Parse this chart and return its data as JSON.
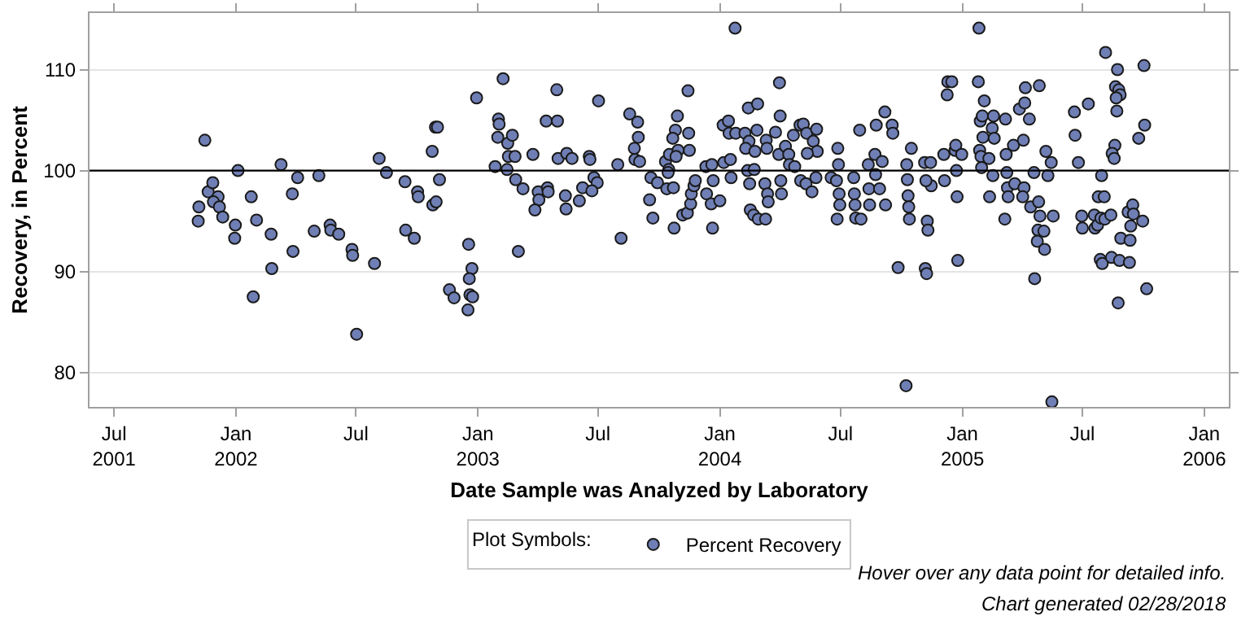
{
  "chart_data": {
    "type": "scatter",
    "xlabel": "Date Sample was Analyzed by Laboratory",
    "ylabel": "Recovery, in Percent",
    "legend_title": "Plot Symbols:",
    "legend": "bottom",
    "marker": "circle",
    "grid": "y",
    "xlim": [
      "2001-05-25",
      "2006-02-07"
    ],
    "xticks": [
      {
        "value": "2001-07-01",
        "label": "Jul\n2001"
      },
      {
        "value": "2002-01-01",
        "label": "Jan\n2002"
      },
      {
        "value": "2002-07-01",
        "label": "Jul"
      },
      {
        "value": "2003-01-01",
        "label": "Jan\n2003"
      },
      {
        "value": "2003-07-01",
        "label": "Jul"
      },
      {
        "value": "2004-01-01",
        "label": "Jan\n2004"
      },
      {
        "value": "2004-07-01",
        "label": "Jul"
      },
      {
        "value": "2005-01-01",
        "label": "Jan\n2005"
      },
      {
        "value": "2005-07-01",
        "label": "Jul"
      },
      {
        "value": "2006-01-01",
        "label": "Jan\n2006"
      }
    ],
    "ylim": [
      76.6,
      115.6
    ],
    "yticks": [
      80,
      90,
      100,
      110
    ],
    "ref_lines": [
      {
        "axis": "y",
        "value": 100,
        "label": null,
        "color": "#000000",
        "line_style": "solid"
      }
    ],
    "annotations": [
      "Hover over any data point for detailed info.",
      "Chart generated 02/28/2018"
    ],
    "x": [
      "2001-11-15",
      "2001-11-06",
      "2001-11-05",
      "2001-11-20",
      "2001-11-27",
      "2001-12-05",
      "2001-11-28",
      "2001-12-07",
      "2001-12-12",
      "2002-01-04",
      "2001-12-31",
      "2001-12-30",
      "2002-01-24",
      "2002-02-01",
      "2002-01-27",
      "2002-02-23",
      "2002-02-24",
      "2002-03-10",
      "2002-03-27",
      "2002-04-04",
      "2002-03-28",
      "2002-04-29",
      "2002-05-06",
      "2002-05-23",
      "2002-05-24",
      "2002-06-05",
      "2002-06-25",
      "2002-06-26",
      "2002-07-02",
      "2002-07-29",
      "2002-08-05",
      "2002-08-16",
      "2002-09-13",
      "2002-10-02",
      "2002-10-03",
      "2002-09-14",
      "2002-09-27",
      "2002-10-24",
      "2002-10-29",
      "2002-11-01",
      "2002-11-04",
      "2002-10-25",
      "2002-10-30",
      "2002-11-19",
      "2002-11-26",
      "2002-12-18",
      "2002-12-23",
      "2002-12-19",
      "2002-12-20",
      "2002-12-24",
      "2002-12-17",
      "2002-12-30",
      "2003-02-08",
      "2003-02-01",
      "2003-02-02",
      "2003-01-31",
      "2003-02-15",
      "2003-02-22",
      "2003-02-16",
      "2003-02-26",
      "2003-01-27",
      "2003-02-14",
      "2003-02-27",
      "2003-03-10",
      "2003-03-03",
      "2003-03-25",
      "2003-04-02",
      "2003-04-03",
      "2003-03-28",
      "2003-04-16",
      "2003-04-17",
      "2003-04-14",
      "2003-05-01",
      "2003-04-30",
      "2003-05-02",
      "2003-05-15",
      "2003-05-23",
      "2003-05-13",
      "2003-05-14",
      "2003-06-03",
      "2003-06-08",
      "2003-06-18",
      "2003-06-19",
      "2003-07-02",
      "2003-06-25",
      "2003-06-30",
      "2003-06-22",
      "2003-07-31",
      "2003-08-05",
      "2003-08-18",
      "2003-08-30",
      "2003-08-31",
      "2003-08-25",
      "2003-08-26",
      "2003-09-02",
      "2003-09-19",
      "2003-09-29",
      "2003-09-17",
      "2003-09-22",
      "2003-10-11",
      "2003-10-16",
      "2003-10-13",
      "2003-10-17",
      "2004-01-24",
      "2003-11-14",
      "2003-10-29",
      "2003-10-26",
      "2003-10-22",
      "2003-11-15",
      "2003-11-16",
      "2003-10-30",
      "2003-10-27",
      "2003-10-15",
      "2003-10-23",
      "2003-10-24",
      "2003-11-06",
      "2003-11-13",
      "2003-11-18",
      "2003-11-19",
      "2003-11-23",
      "2003-11-25",
      "2003-12-11",
      "2003-12-12",
      "2003-12-19",
      "2004-01-01",
      "2003-12-21",
      "2003-12-22",
      "2003-12-20",
      "2004-01-07",
      "2004-01-06",
      "2004-01-14",
      "2004-01-15",
      "2004-01-17",
      "2004-01-18",
      "2004-01-25",
      "2004-02-13",
      "2004-02-27",
      "2004-02-08",
      "2004-02-14",
      "2004-02-09",
      "2004-02-23",
      "2004-02-12",
      "2004-02-22",
      "2004-02-15",
      "2004-02-16",
      "2004-02-21",
      "2004-02-28",
      "2004-03-10",
      "2004-02-26",
      "2004-03-11",
      "2004-03-12",
      "2004-03-09",
      "2004-03-13",
      "2004-03-14",
      "2004-03-31",
      "2004-04-01",
      "2004-03-25",
      "2004-03-30",
      "2004-04-02",
      "2004-04-03",
      "2004-04-09",
      "2004-04-14",
      "2004-04-15",
      "2004-04-23",
      "2004-04-21",
      "2004-05-01",
      "2004-05-06",
      "2004-05-11",
      "2004-05-21",
      "2004-05-26",
      "2004-05-27",
      "2004-05-12",
      "2004-05-02",
      "2004-05-10",
      "2004-05-19",
      "2004-05-25",
      "2004-06-17",
      "2004-06-27",
      "2004-06-28",
      "2004-06-25",
      "2004-06-29",
      "2004-06-30",
      "2004-06-26",
      "2004-07-21",
      "2004-07-22",
      "2004-07-23",
      "2004-07-24",
      "2004-08-01",
      "2004-07-30",
      "2004-08-12",
      "2004-08-13",
      "2004-08-14",
      "2004-08-22",
      "2004-08-24",
      "2004-08-23",
      "2004-09-02",
      "2004-09-06",
      "2004-08-29",
      "2004-09-07",
      "2004-09-17",
      "2004-09-18",
      "2004-09-26",
      "2004-10-09",
      "2004-10-10",
      "2004-10-11",
      "2004-10-12",
      "2004-10-13",
      "2004-10-16",
      "2004-10-08",
      "2004-11-06",
      "2004-11-08",
      "2004-11-09",
      "2004-11-10",
      "2004-11-05",
      "2004-11-14",
      "2004-11-15",
      "2004-11-07",
      "2004-12-04",
      "2004-12-05",
      "2004-12-09",
      "2004-12-10",
      "2004-12-16",
      "2004-12-21",
      "2004-12-24",
      "2004-12-25",
      "2005-01-26",
      "2004-12-22",
      "2004-12-31",
      "2004-12-23",
      "2005-01-25",
      "2005-02-03",
      "2005-01-28",
      "2005-01-31",
      "2005-02-17",
      "2005-02-15",
      "2005-02-18",
      "2005-02-01",
      "2005-01-27",
      "2005-01-29",
      "2005-02-10",
      "2005-01-30",
      "2005-02-16",
      "2005-02-11",
      "2005-03-07",
      "2005-03-08",
      "2005-03-09",
      "2005-03-10",
      "2005-03-11",
      "2005-03-06",
      "2005-03-19",
      "2005-03-21",
      "2005-04-04",
      "2005-04-02",
      "2005-03-28",
      "2005-04-05",
      "2005-04-06",
      "2005-04-27",
      "2005-04-12",
      "2005-04-03",
      "2005-04-19",
      "2005-04-14",
      "2005-04-26",
      "2005-04-28",
      "2005-04-25",
      "2005-05-04",
      "2005-04-24",
      "2005-05-05",
      "2005-04-20",
      "2005-05-18",
      "2005-05-07",
      "2005-05-15",
      "2005-05-10",
      "2005-05-16",
      "2005-06-19",
      "2005-06-20",
      "2005-06-25",
      "2005-07-10",
      "2005-06-30",
      "2005-07-01",
      "2005-07-19",
      "2005-07-20",
      "2005-07-24",
      "2005-07-29",
      "2005-08-04",
      "2005-08-13",
      "2005-07-25",
      "2005-08-03",
      "2005-07-30",
      "2005-07-28",
      "2005-07-31",
      "2005-08-14",
      "2005-08-26",
      "2005-09-10",
      "2005-08-24",
      "2005-08-05",
      "2005-08-23",
      "2005-08-20",
      "2005-08-25",
      "2005-08-27",
      "2005-08-21",
      "2005-08-22",
      "2005-08-19",
      "2005-08-15",
      "2005-08-18",
      "2005-08-28",
      "2005-09-11",
      "2005-09-12",
      "2005-09-08",
      "2005-09-15",
      "2005-09-16",
      "2005-09-30",
      "2005-10-02",
      "2005-10-03",
      "2005-09-24",
      "2005-10-06"
    ],
    "series": [
      {
        "name": "Percent Recovery",
        "color": "#6f7fb5",
        "values": [
          103.0,
          96.4,
          95.0,
          97.9,
          98.8,
          97.4,
          96.9,
          96.4,
          95.4,
          100.0,
          94.6,
          93.3,
          97.4,
          95.1,
          87.5,
          93.7,
          90.3,
          100.6,
          97.7,
          99.3,
          92.0,
          94.0,
          99.5,
          94.6,
          94.1,
          93.7,
          92.2,
          91.6,
          83.8,
          90.8,
          101.2,
          99.8,
          98.9,
          97.9,
          97.4,
          94.1,
          93.3,
          101.9,
          104.3,
          104.3,
          99.1,
          96.6,
          96.9,
          88.2,
          87.4,
          92.7,
          90.3,
          89.3,
          87.7,
          87.5,
          86.2,
          107.2,
          109.1,
          105.1,
          104.6,
          103.3,
          102.7,
          103.5,
          101.4,
          101.4,
          100.4,
          100.1,
          99.1,
          98.2,
          92.0,
          101.6,
          97.9,
          97.1,
          96.1,
          98.3,
          97.9,
          104.9,
          104.9,
          108.0,
          101.2,
          101.7,
          101.2,
          97.5,
          96.2,
          97.0,
          98.3,
          101.4,
          101.1,
          106.9,
          99.3,
          98.8,
          98.0,
          100.6,
          93.3,
          105.6,
          104.8,
          103.3,
          102.2,
          101.1,
          100.9,
          99.3,
          98.8,
          97.1,
          95.3,
          100.9,
          100.1,
          98.2,
          101.6,
          114.1,
          107.9,
          105.4,
          104.0,
          103.2,
          103.7,
          102.0,
          102.0,
          101.4,
          99.8,
          98.3,
          94.3,
          95.6,
          95.8,
          96.7,
          97.7,
          98.5,
          99.0,
          100.4,
          97.7,
          96.7,
          97.0,
          94.3,
          99.0,
          100.6,
          100.8,
          104.5,
          104.9,
          103.7,
          101.1,
          99.3,
          103.7,
          106.2,
          106.6,
          103.7,
          102.9,
          102.2,
          101.9,
          100.0,
          100.1,
          98.7,
          96.1,
          95.6,
          95.2,
          95.2,
          104.0,
          103.0,
          102.2,
          98.7,
          97.7,
          96.9,
          108.7,
          105.4,
          103.8,
          101.6,
          99.0,
          97.7,
          102.4,
          101.6,
          100.6,
          100.4,
          103.5,
          104.5,
          104.6,
          103.7,
          102.9,
          104.1,
          101.9,
          101.7,
          99.0,
          98.7,
          97.9,
          99.3,
          99.3,
          102.2,
          100.6,
          99.0,
          97.7,
          96.6,
          95.2,
          99.3,
          97.7,
          96.6,
          95.3,
          95.2,
          104.0,
          100.6,
          98.2,
          96.6,
          101.6,
          104.5,
          99.6,
          100.9,
          105.8,
          98.2,
          96.6,
          104.5,
          103.7,
          90.4,
          100.6,
          99.1,
          97.5,
          96.4,
          95.2,
          102.2,
          78.7,
          90.3,
          89.8,
          95.0,
          94.1,
          100.8,
          100.8,
          98.5,
          99.0,
          101.6,
          99.0,
          107.5,
          108.8,
          108.8,
          102.0,
          97.4,
          91.1,
          114.1,
          102.5,
          101.6,
          100.0,
          108.8,
          106.9,
          104.9,
          105.4,
          105.4,
          104.2,
          103.2,
          103.3,
          102.0,
          101.4,
          101.2,
          100.3,
          99.5,
          97.4,
          105.1,
          101.6,
          99.8,
          98.3,
          97.4,
          95.2,
          102.5,
          98.7,
          98.3,
          97.4,
          106.1,
          106.7,
          108.2,
          108.4,
          105.1,
          103.0,
          99.8,
          96.4,
          96.9,
          95.5,
          94.1,
          94.0,
          93.0,
          92.2,
          89.3,
          95.5,
          101.9,
          100.8,
          99.5,
          77.1,
          105.8,
          103.5,
          100.8,
          106.6,
          95.5,
          94.3,
          95.6,
          94.3,
          94.6,
          95.3,
          95.2,
          95.6,
          97.4,
          97.4,
          99.5,
          91.2,
          90.8,
          91.4,
          91.1,
          90.9,
          86.9,
          111.7,
          110.0,
          108.3,
          108.0,
          107.5,
          107.2,
          105.9,
          102.5,
          101.7,
          101.2,
          93.3,
          93.1,
          94.5,
          95.9,
          96.6,
          95.7,
          95.0,
          110.4,
          104.5,
          103.2,
          88.3
        ]
      }
    ]
  }
}
